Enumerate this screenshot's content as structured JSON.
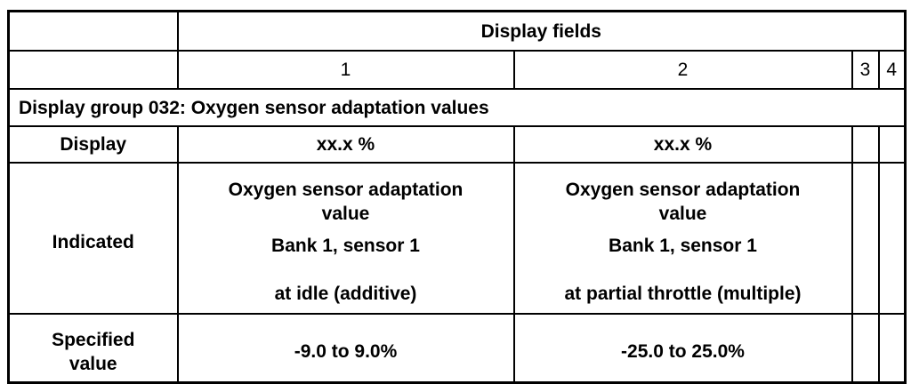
{
  "table": {
    "header_title": "Display fields",
    "field_numbers": [
      "1",
      "2",
      "3",
      "4"
    ],
    "group_title": "Display group 032: Oxygen sensor adaptation values",
    "rows": {
      "display": {
        "label": "Display",
        "field1": "xx.x %",
        "field2": "xx.x %"
      },
      "indicated": {
        "label": "Indicated",
        "field1": {
          "line1": "Oxygen sensor adaptation",
          "line2": "value",
          "line3": "Bank 1, sensor 1",
          "line4": "at idle (additive)"
        },
        "field2": {
          "line1": "Oxygen sensor adaptation",
          "line2": "value",
          "line3": "Bank 1, sensor 1",
          "line4": "at partial throttle (multiple)"
        }
      },
      "specified": {
        "label_line1": "Specified",
        "label_line2": "value",
        "field1": "-9.0 to 9.0%",
        "field2": "-25.0 to 25.0%"
      }
    }
  }
}
